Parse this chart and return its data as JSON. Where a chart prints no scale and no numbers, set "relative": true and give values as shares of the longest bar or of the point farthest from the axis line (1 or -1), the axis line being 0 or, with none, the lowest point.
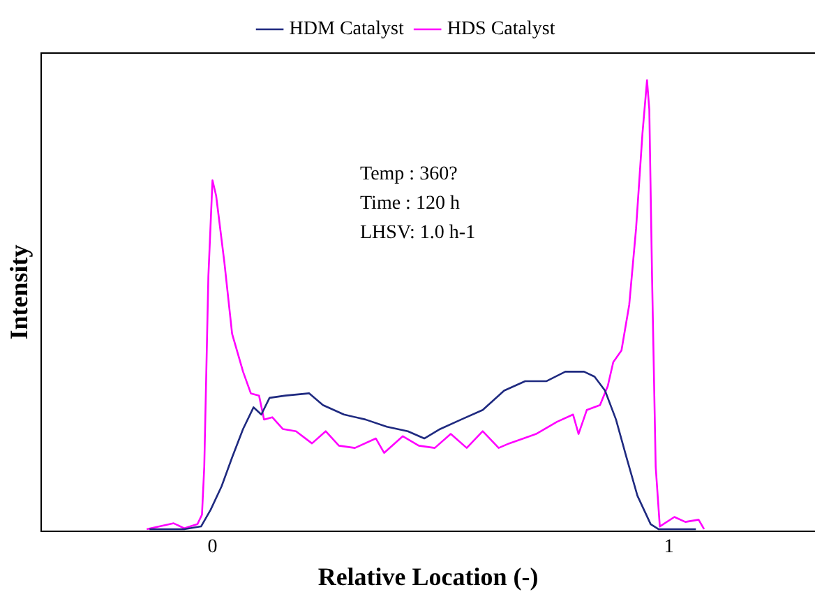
{
  "chart_data": {
    "type": "line",
    "xlabel": "Relative Location (-)",
    "ylabel": "Intensity",
    "relative": true,
    "xlim": [
      -0.375,
      1.32
    ],
    "xticks": [
      0,
      1
    ],
    "grid": false,
    "legend": "top",
    "marker": "none",
    "line_style": "solid",
    "tick_labels": "x",
    "annotations": [
      "Temp : 360?",
      "Time : 120 h",
      "LHSV: 1.0 h-1"
    ],
    "series": [
      {
        "name": "HDM Catalyst",
        "color": "#1f2a80",
        "x": [
          -0.138,
          -0.062,
          -0.025,
          -0.004,
          0.02,
          0.043,
          0.067,
          0.09,
          0.107,
          0.125,
          0.16,
          0.212,
          0.242,
          0.288,
          0.335,
          0.382,
          0.428,
          0.464,
          0.499,
          0.545,
          0.592,
          0.639,
          0.685,
          0.732,
          0.773,
          0.814,
          0.837,
          0.86,
          0.884,
          0.907,
          0.931,
          0.96,
          0.977,
          1.059
        ],
        "values": [
          0.005,
          0.005,
          0.011,
          0.048,
          0.1,
          0.164,
          0.227,
          0.275,
          0.259,
          0.296,
          0.301,
          0.306,
          0.28,
          0.259,
          0.248,
          0.232,
          0.222,
          0.206,
          0.227,
          0.248,
          0.269,
          0.312,
          0.333,
          0.333,
          0.354,
          0.354,
          0.343,
          0.312,
          0.248,
          0.164,
          0.079,
          0.016,
          0.005,
          0.005
        ]
      },
      {
        "name": "HDS Catalyst",
        "color": "#ff00ff",
        "x": [
          -0.144,
          -0.085,
          -0.062,
          -0.033,
          -0.023,
          -0.018,
          -0.009,
          0,
          0.008,
          0.026,
          0.043,
          0.067,
          0.084,
          0.102,
          0.113,
          0.131,
          0.154,
          0.183,
          0.218,
          0.248,
          0.277,
          0.312,
          0.358,
          0.376,
          0.417,
          0.452,
          0.487,
          0.522,
          0.557,
          0.592,
          0.627,
          0.65,
          0.709,
          0.755,
          0.79,
          0.802,
          0.82,
          0.849,
          0.866,
          0.878,
          0.896,
          0.913,
          0.928,
          0.942,
          0.952,
          0.957,
          0.963,
          0.971,
          0.98,
          1.012,
          1.036,
          1.065,
          1.077
        ],
        "values": [
          0.005,
          0.018,
          0.007,
          0.016,
          0.037,
          0.143,
          0.565,
          0.778,
          0.744,
          0.597,
          0.438,
          0.354,
          0.306,
          0.301,
          0.248,
          0.253,
          0.227,
          0.222,
          0.195,
          0.222,
          0.19,
          0.185,
          0.206,
          0.174,
          0.211,
          0.19,
          0.185,
          0.216,
          0.185,
          0.222,
          0.185,
          0.195,
          0.216,
          0.243,
          0.259,
          0.216,
          0.269,
          0.28,
          0.322,
          0.375,
          0.401,
          0.502,
          0.671,
          0.882,
          1,
          0.935,
          0.565,
          0.143,
          0.011,
          0.032,
          0.021,
          0.026,
          0.005
        ]
      }
    ]
  }
}
